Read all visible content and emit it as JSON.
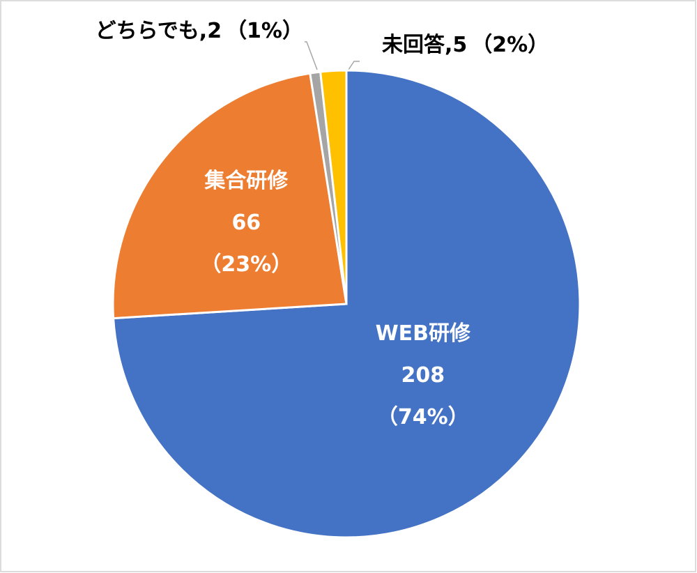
{
  "chart_data": {
    "type": "pie",
    "categories": [
      "WEB研修",
      "集合研修",
      "どちらでも",
      "未回答"
    ],
    "values": [
      208,
      66,
      2,
      5
    ],
    "percents": [
      74,
      23,
      1,
      2
    ],
    "percent_labels": [
      "（74%）",
      "（23%）",
      "（1%）",
      "（2%）"
    ],
    "label_separator": ",",
    "colors": [
      "#4472c4",
      "#ed7d31",
      "#a5a5a5",
      "#ffc000"
    ]
  }
}
